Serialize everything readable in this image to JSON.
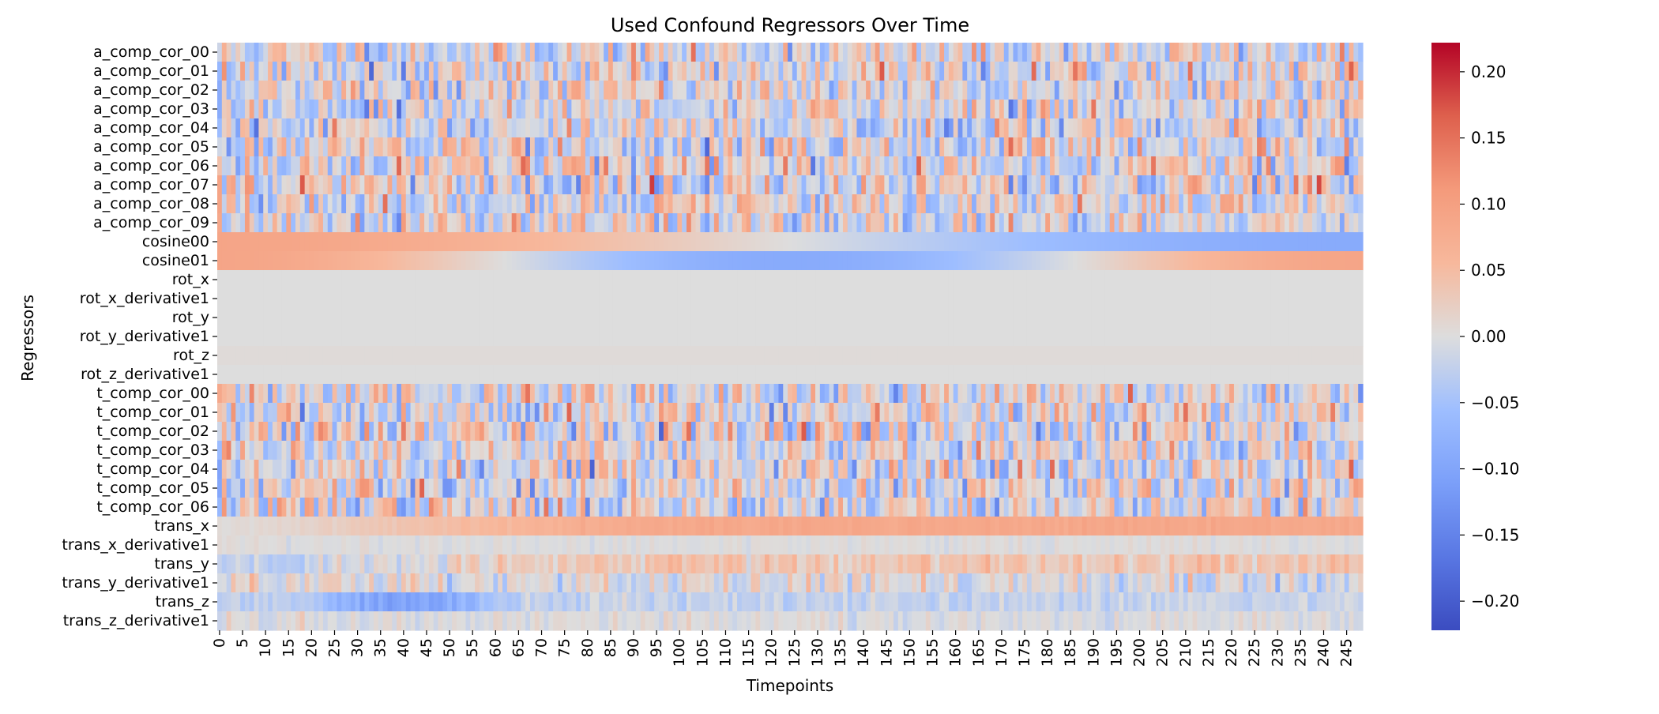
{
  "chart_data": {
    "type": "heatmap",
    "title": "Used Confound Regressors Over Time",
    "xlabel": "Timepoints",
    "ylabel": "Regressors",
    "rows": [
      "a_comp_cor_00",
      "a_comp_cor_01",
      "a_comp_cor_02",
      "a_comp_cor_03",
      "a_comp_cor_04",
      "a_comp_cor_05",
      "a_comp_cor_06",
      "a_comp_cor_07",
      "a_comp_cor_08",
      "a_comp_cor_09",
      "cosine00",
      "cosine01",
      "rot_x",
      "rot_x_derivative1",
      "rot_y",
      "rot_y_derivative1",
      "rot_z",
      "rot_z_derivative1",
      "t_comp_cor_00",
      "t_comp_cor_01",
      "t_comp_cor_02",
      "t_comp_cor_03",
      "t_comp_cor_04",
      "t_comp_cor_05",
      "t_comp_cor_06",
      "trans_x",
      "trans_x_derivative1",
      "trans_y",
      "trans_y_derivative1",
      "trans_z",
      "trans_z_derivative1"
    ],
    "n_timepoints": 249,
    "x_tick_step": 5,
    "x_tick_labels": [
      "0",
      "5",
      "10",
      "15",
      "20",
      "25",
      "30",
      "35",
      "40",
      "45",
      "50",
      "55",
      "60",
      "65",
      "70",
      "75",
      "80",
      "85",
      "90",
      "95",
      "100",
      "105",
      "110",
      "115",
      "120",
      "125",
      "130",
      "135",
      "140",
      "145",
      "150",
      "155",
      "160",
      "165",
      "170",
      "175",
      "180",
      "185",
      "190",
      "195",
      "200",
      "205",
      "210",
      "215",
      "220",
      "225",
      "230",
      "235",
      "240",
      "245"
    ],
    "colorbar": {
      "cmap": "coolwarm",
      "vmin": -0.222,
      "vmax": 0.222,
      "ticks": [
        0.2,
        0.15,
        0.1,
        0.05,
        0.0,
        -0.05,
        -0.1,
        -0.15,
        -0.2
      ],
      "tick_labels": [
        "0.20",
        "0.15",
        "0.10",
        "0.05",
        "0.00",
        "−0.05",
        "−0.10",
        "−0.15",
        "−0.20"
      ]
    },
    "row_models": {
      "a_comp_cor_00": {
        "kind": "noise",
        "amp": 0.055,
        "seed": 11
      },
      "a_comp_cor_01": {
        "kind": "noise",
        "amp": 0.06,
        "seed": 12
      },
      "a_comp_cor_02": {
        "kind": "noise",
        "amp": 0.055,
        "seed": 13
      },
      "a_comp_cor_03": {
        "kind": "noise",
        "amp": 0.055,
        "seed": 14
      },
      "a_comp_cor_04": {
        "kind": "noise",
        "amp": 0.055,
        "seed": 15
      },
      "a_comp_cor_05": {
        "kind": "noise",
        "amp": 0.06,
        "seed": 16
      },
      "a_comp_cor_06": {
        "kind": "noise",
        "amp": 0.06,
        "seed": 17
      },
      "a_comp_cor_07": {
        "kind": "noise",
        "amp": 0.065,
        "seed": 18
      },
      "a_comp_cor_08": {
        "kind": "noise",
        "amp": 0.055,
        "seed": 19
      },
      "a_comp_cor_09": {
        "kind": "noise",
        "amp": 0.06,
        "seed": 20
      },
      "cosine00": {
        "kind": "cos",
        "amp": 0.09,
        "freq": 0.5
      },
      "cosine01": {
        "kind": "cos",
        "amp": 0.09,
        "freq": 1.0
      },
      "rot_x": {
        "kind": "flat",
        "value": 0.0
      },
      "rot_x_derivative1": {
        "kind": "flat",
        "value": 0.0
      },
      "rot_y": {
        "kind": "flat",
        "value": 0.0
      },
      "rot_y_derivative1": {
        "kind": "flat",
        "value": 0.0
      },
      "rot_z": {
        "kind": "flat",
        "value": 0.004
      },
      "rot_z_derivative1": {
        "kind": "flat",
        "value": 0.0
      },
      "t_comp_cor_00": {
        "kind": "noise",
        "amp": 0.06,
        "seed": 31
      },
      "t_comp_cor_01": {
        "kind": "noise",
        "amp": 0.06,
        "seed": 32
      },
      "t_comp_cor_02": {
        "kind": "noise",
        "amp": 0.065,
        "seed": 33
      },
      "t_comp_cor_03": {
        "kind": "noise",
        "amp": 0.055,
        "seed": 34
      },
      "t_comp_cor_04": {
        "kind": "noise",
        "amp": 0.065,
        "seed": 35
      },
      "t_comp_cor_05": {
        "kind": "noise",
        "amp": 0.06,
        "seed": 36
      },
      "t_comp_cor_06": {
        "kind": "noise",
        "amp": 0.06,
        "seed": 37
      },
      "trans_x": {
        "kind": "ramp",
        "start": 0.0,
        "end": 0.085,
        "jitter": 0.004,
        "seed": 41
      },
      "trans_x_derivative1": {
        "kind": "noise",
        "amp": 0.006,
        "seed": 42
      },
      "trans_y": {
        "kind": "ramp",
        "start": -0.035,
        "end": 0.04,
        "jitter": 0.02,
        "seed": 43
      },
      "trans_y_derivative1": {
        "kind": "noise",
        "amp": 0.03,
        "seed": 44
      },
      "trans_z": {
        "kind": "bump",
        "base": -0.02,
        "center": 40,
        "width": 18,
        "depth": -0.09,
        "jitter": 0.012,
        "seed": 45
      },
      "trans_z_derivative1": {
        "kind": "noise",
        "amp": 0.012,
        "seed": 46
      }
    }
  }
}
